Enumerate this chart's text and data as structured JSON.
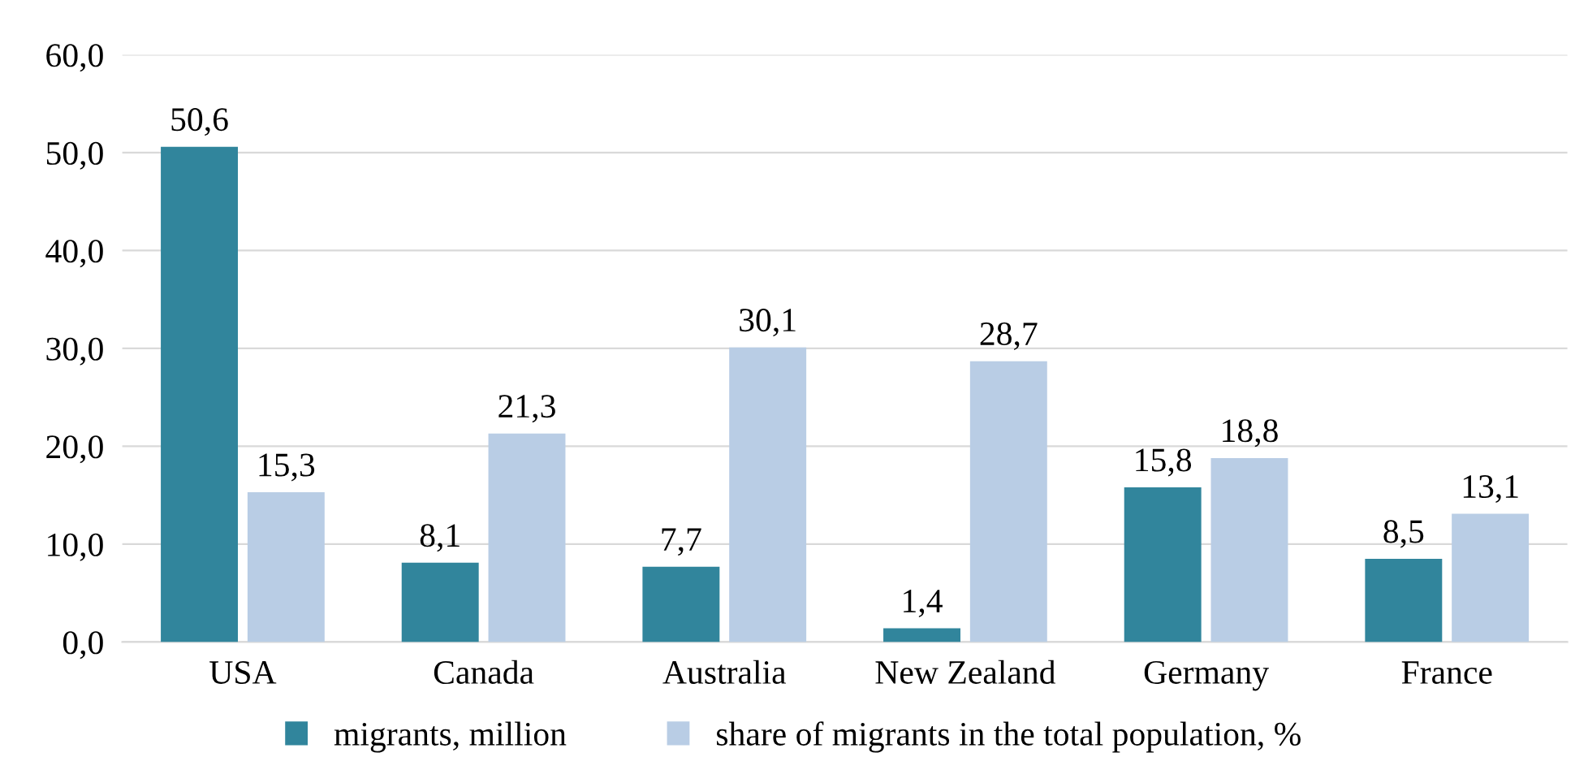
{
  "chart_data": {
    "type": "bar",
    "categories": [
      "USA",
      "Canada",
      "Australia",
      "New Zealand",
      "Germany",
      "France"
    ],
    "series": [
      {
        "name": "migrants, million",
        "color": "#31859c",
        "values": [
          50.6,
          8.1,
          7.7,
          1.4,
          15.8,
          8.5
        ],
        "value_labels": [
          "50,6",
          "8,1",
          "7,7",
          "1,4",
          "15,8",
          "8,5"
        ]
      },
      {
        "name": "share of migrants in the total population, %",
        "color": "#b9cde5",
        "values": [
          15.3,
          21.3,
          30.1,
          28.7,
          18.8,
          13.1
        ],
        "value_labels": [
          "15,3",
          "21,3",
          "30,1",
          "28,7",
          "18,8",
          "13,1"
        ]
      }
    ],
    "ylim": [
      0,
      60
    ],
    "yticks": [
      {
        "value": 0,
        "label": "0,0"
      },
      {
        "value": 10,
        "label": "10,0"
      },
      {
        "value": 20,
        "label": "20,0"
      },
      {
        "value": 30,
        "label": "30,0"
      },
      {
        "value": 40,
        "label": "40,0"
      },
      {
        "value": 50,
        "label": "50,0"
      },
      {
        "value": 60,
        "label": "60,0"
      }
    ],
    "grid": "y",
    "legend": "bottom"
  }
}
